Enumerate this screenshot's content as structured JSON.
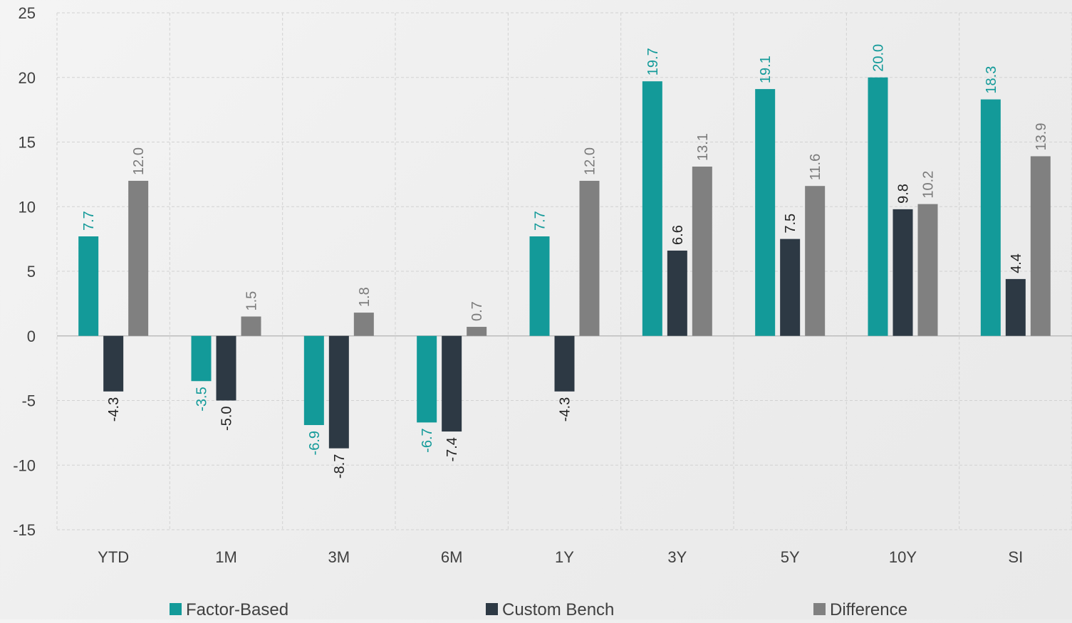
{
  "chart_data": {
    "type": "bar",
    "title": "",
    "xlabel": "",
    "ylabel": "",
    "categories": [
      "YTD",
      "1M",
      "3M",
      "6M",
      "1Y",
      "3Y",
      "5Y",
      "10Y",
      "SI"
    ],
    "ylim": [
      -15,
      25
    ],
    "yticks": [
      25,
      20,
      15,
      10,
      5,
      0,
      -5,
      -10,
      -15
    ],
    "ytick_labels": [
      "25",
      "20",
      "15",
      "10",
      "5",
      "0",
      "-5",
      "-10",
      "-15"
    ],
    "grid": true,
    "legend_position": "bottom",
    "series": [
      {
        "name": "Factor-Based",
        "color": "#139a99",
        "label_color": "#139a99",
        "values": [
          7.7,
          -3.5,
          -6.9,
          -6.7,
          7.7,
          19.7,
          19.1,
          20.0,
          18.3
        ],
        "labels": [
          "7.7",
          "-3.5",
          "-6.9",
          "-6.7",
          "7.7",
          "19.7",
          "19.1",
          "20.0",
          "18.3"
        ]
      },
      {
        "name": "Custom Bench",
        "color": "#2d3944",
        "label_color": "#222222",
        "values": [
          -4.3,
          -5.0,
          -8.7,
          -7.4,
          -4.3,
          6.6,
          7.5,
          9.8,
          4.4
        ],
        "labels": [
          "-4.3",
          "-5.0",
          "-8.7",
          "-7.4",
          "-4.3",
          "6.6",
          "7.5",
          "9.8",
          "4.4"
        ]
      },
      {
        "name": "Difference",
        "color": "#808080",
        "label_color": "#7a7a7a",
        "values": [
          12.0,
          1.5,
          1.8,
          0.7,
          null,
          13.1,
          11.6,
          10.2,
          13.9
        ],
        "labels": [
          "12.0",
          "1.5",
          "1.8",
          "0.7",
          "",
          "13.1",
          "11.6",
          "10.2",
          "13.9"
        ]
      }
    ],
    "extra_bars": [
      {
        "category_index": 4,
        "series_index": 2,
        "value": 12.0,
        "label": "12.0"
      }
    ]
  }
}
